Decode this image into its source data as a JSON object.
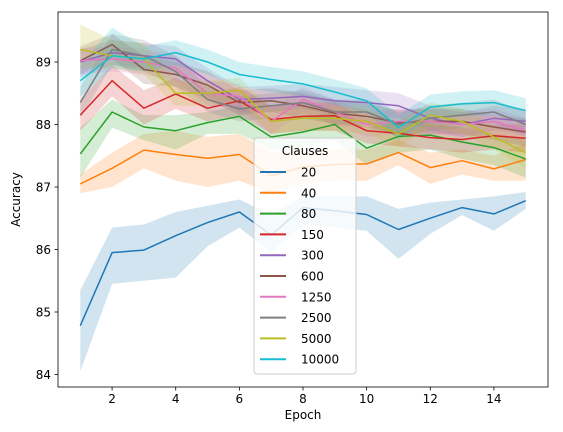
{
  "chart_data": {
    "type": "line",
    "xlabel": "Epoch",
    "ylabel": "Accuracy",
    "xlim": [
      0.3,
      15.7
    ],
    "ylim": [
      83.8,
      89.8
    ],
    "xticks": [
      2,
      4,
      6,
      8,
      10,
      12,
      14
    ],
    "yticks": [
      84,
      85,
      86,
      87,
      88,
      89
    ],
    "x": [
      1,
      2,
      3,
      4,
      5,
      6,
      7,
      8,
      9,
      10,
      11,
      12,
      13,
      14,
      15
    ],
    "legend": {
      "title": "Clauses",
      "placement": "center"
    },
    "confidence_bands": true,
    "series": [
      {
        "name": "20",
        "color": "#1f77b4",
        "values": [
          84.78,
          85.95,
          85.99,
          86.22,
          86.43,
          86.6,
          86.23,
          86.67,
          86.62,
          86.56,
          86.32,
          86.5,
          86.67,
          86.57,
          86.78
        ],
        "lower": [
          84.05,
          85.45,
          85.5,
          85.55,
          86.05,
          86.35,
          85.95,
          86.4,
          86.35,
          86.3,
          85.85,
          86.25,
          86.55,
          86.3,
          86.65
        ],
        "upper": [
          85.35,
          86.35,
          86.4,
          86.6,
          86.7,
          86.8,
          86.55,
          86.85,
          86.85,
          86.85,
          86.65,
          86.75,
          86.8,
          86.85,
          86.92
        ]
      },
      {
        "name": "40",
        "color": "#ff7f0e",
        "values": [
          87.05,
          87.3,
          87.59,
          87.52,
          87.46,
          87.52,
          87.18,
          87.32,
          87.36,
          87.37,
          87.55,
          87.31,
          87.42,
          87.29,
          87.44
        ],
        "lower": [
          86.9,
          87.0,
          87.3,
          87.1,
          87.0,
          87.1,
          86.9,
          87.05,
          87.1,
          87.1,
          87.35,
          87.05,
          87.2,
          87.1,
          87.1
        ],
        "upper": [
          87.2,
          87.55,
          87.85,
          87.9,
          87.8,
          87.85,
          87.55,
          87.6,
          87.6,
          87.6,
          87.75,
          87.55,
          87.6,
          87.5,
          87.7
        ]
      },
      {
        "name": "80",
        "color": "#2ca02c",
        "values": [
          87.53,
          88.2,
          87.96,
          87.9,
          88.03,
          88.13,
          87.8,
          87.88,
          88.0,
          87.62,
          87.81,
          87.83,
          87.72,
          87.63,
          87.45
        ],
        "lower": [
          87.15,
          87.95,
          87.75,
          87.6,
          87.85,
          87.85,
          87.6,
          87.65,
          87.75,
          87.35,
          87.55,
          87.6,
          87.45,
          87.35,
          87.15
        ],
        "upper": [
          87.95,
          88.4,
          88.15,
          88.15,
          88.2,
          88.3,
          88.05,
          88.1,
          88.2,
          87.95,
          88.05,
          88.05,
          87.95,
          87.85,
          87.75
        ]
      },
      {
        "name": "150",
        "color": "#d62728",
        "values": [
          88.15,
          88.7,
          88.26,
          88.49,
          88.26,
          88.38,
          88.08,
          88.13,
          88.14,
          87.9,
          87.86,
          87.79,
          87.76,
          87.82,
          87.78
        ],
        "lower": [
          87.9,
          88.45,
          88.0,
          88.25,
          88.05,
          88.15,
          87.85,
          87.9,
          87.9,
          87.7,
          87.65,
          87.6,
          87.55,
          87.6,
          87.55
        ],
        "upper": [
          88.4,
          88.95,
          88.55,
          88.75,
          88.5,
          88.6,
          88.3,
          88.35,
          88.35,
          88.1,
          88.05,
          88.0,
          87.95,
          88.0,
          88.0
        ]
      },
      {
        "name": "300",
        "color": "#9467bd",
        "values": [
          89.0,
          89.15,
          89.1,
          89.05,
          88.7,
          88.4,
          88.42,
          88.45,
          88.38,
          88.35,
          88.3,
          88.1,
          88.0,
          88.1,
          88.05
        ],
        "lower": [
          88.75,
          88.95,
          88.9,
          88.8,
          88.45,
          88.2,
          88.2,
          88.25,
          88.15,
          88.15,
          88.1,
          87.9,
          87.8,
          87.9,
          87.85
        ],
        "upper": [
          89.2,
          89.35,
          89.3,
          89.25,
          88.9,
          88.6,
          88.62,
          88.65,
          88.6,
          88.55,
          88.5,
          88.3,
          88.2,
          88.3,
          88.25
        ]
      },
      {
        "name": "600",
        "color": "#8c564b",
        "values": [
          89.02,
          89.28,
          88.88,
          88.8,
          88.63,
          88.35,
          88.38,
          88.3,
          88.18,
          88.13,
          88.03,
          88.05,
          88.05,
          87.96,
          87.88
        ],
        "lower": [
          88.8,
          89.05,
          88.65,
          88.6,
          88.4,
          88.15,
          88.2,
          88.1,
          88.0,
          87.95,
          87.85,
          87.85,
          87.85,
          87.75,
          87.65
        ],
        "upper": [
          89.25,
          89.45,
          89.1,
          89.0,
          88.85,
          88.55,
          88.58,
          88.5,
          88.38,
          88.33,
          88.23,
          88.25,
          88.25,
          88.15,
          88.1
        ]
      },
      {
        "name": "1250",
        "color": "#e377c2",
        "values": [
          89.02,
          89.05,
          89.0,
          88.9,
          88.5,
          88.45,
          88.05,
          88.4,
          88.2,
          88.0,
          88.05,
          88.05,
          88.0,
          88.05,
          87.9
        ],
        "lower": [
          88.8,
          88.85,
          88.8,
          88.7,
          88.3,
          88.25,
          87.85,
          88.2,
          88.0,
          87.8,
          87.85,
          87.85,
          87.8,
          87.85,
          87.7
        ],
        "upper": [
          89.22,
          89.25,
          89.2,
          89.1,
          88.7,
          88.65,
          88.25,
          88.6,
          88.4,
          88.2,
          88.25,
          88.25,
          88.2,
          88.25,
          88.1
        ]
      },
      {
        "name": "2500",
        "color": "#7f7f7f",
        "values": [
          88.35,
          89.2,
          89.1,
          88.85,
          88.4,
          88.25,
          88.3,
          88.35,
          88.2,
          88.2,
          88.0,
          88.1,
          88.15,
          88.2,
          88.0
        ],
        "lower": [
          88.1,
          88.95,
          88.85,
          88.6,
          88.2,
          88.05,
          88.1,
          88.15,
          88.0,
          88.0,
          87.8,
          87.9,
          87.95,
          88.0,
          87.8
        ],
        "upper": [
          88.6,
          89.45,
          89.35,
          89.1,
          88.6,
          88.45,
          88.5,
          88.55,
          88.4,
          88.4,
          88.2,
          88.3,
          88.35,
          88.4,
          88.2
        ]
      },
      {
        "name": "5000",
        "color": "#bcbd22",
        "values": [
          89.2,
          89.1,
          89.05,
          88.5,
          88.5,
          88.55,
          88.05,
          88.1,
          88.1,
          88.05,
          87.85,
          88.15,
          88.05,
          87.8,
          87.55
        ],
        "lower": [
          88.9,
          88.9,
          88.8,
          88.3,
          88.3,
          88.35,
          87.85,
          87.9,
          87.9,
          87.85,
          87.65,
          87.95,
          87.85,
          87.6,
          87.3
        ],
        "upper": [
          89.6,
          89.35,
          89.3,
          88.7,
          88.7,
          88.75,
          88.25,
          88.3,
          88.3,
          88.25,
          88.05,
          88.35,
          88.25,
          88.0,
          87.8
        ]
      },
      {
        "name": "10000",
        "color": "#17becf",
        "values": [
          88.7,
          89.1,
          89.05,
          89.15,
          89.0,
          88.8,
          88.72,
          88.65,
          88.52,
          88.38,
          87.95,
          88.28,
          88.33,
          88.35,
          88.22
        ],
        "lower": [
          88.45,
          88.9,
          88.85,
          88.95,
          88.8,
          88.6,
          88.52,
          88.45,
          88.32,
          88.18,
          87.75,
          88.08,
          88.13,
          88.15,
          88.02
        ],
        "upper": [
          88.95,
          89.55,
          89.25,
          89.35,
          89.2,
          89.0,
          88.92,
          88.85,
          88.72,
          88.58,
          88.15,
          88.48,
          88.53,
          88.55,
          88.42
        ]
      }
    ]
  }
}
